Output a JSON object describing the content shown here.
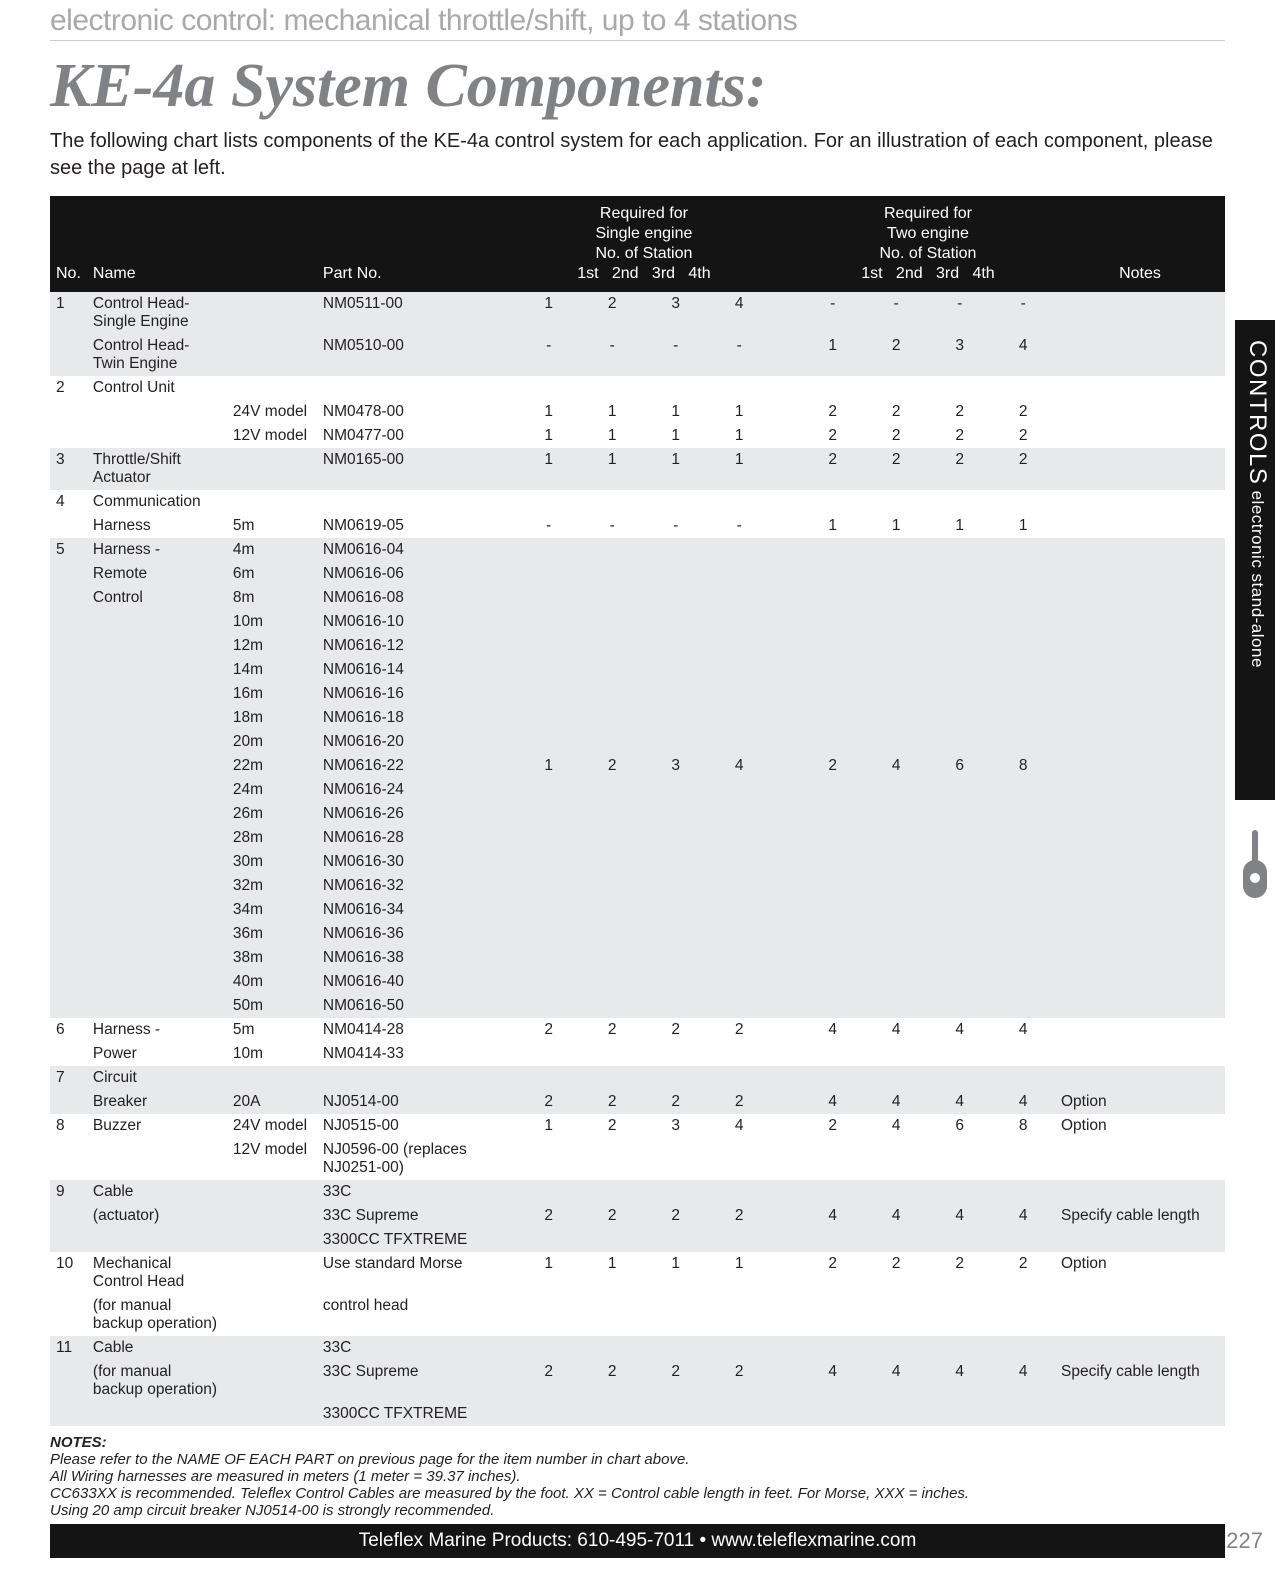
{
  "subtitle": "electronic control: mechanical throttle/shift, up to 4 stations",
  "title": "KE-4a System Components:",
  "intro": "The following chart lists components of the KE-4a control system for each application. For an illustration of each component, please see the page at left.",
  "header": {
    "no": "No.",
    "name": "Name",
    "part": "Part No.",
    "req_single": "Required for\nSingle engine\nNo. of Station",
    "req_twin": "Required for\nTwo engine\nNo. of Station",
    "stations": [
      "1st",
      "2nd",
      "3rd",
      "4th"
    ],
    "notes": "Notes"
  },
  "rows": [
    {
      "no": "1",
      "name": "Control Head-Single Engine",
      "part": "NM0511-00",
      "s": [
        "1",
        "2",
        "3",
        "4"
      ],
      "t": [
        "-",
        "-",
        "-",
        "-"
      ],
      "note": "",
      "band": true
    },
    {
      "no": "",
      "name": "Control Head-Twin Engine",
      "part": "NM0510-00",
      "s": [
        "-",
        "-",
        "-",
        "-"
      ],
      "t": [
        "1",
        "2",
        "3",
        "4"
      ],
      "note": "",
      "band": true
    },
    {
      "no": "2",
      "name": "Control Unit",
      "part": "",
      "s": [
        "",
        "",
        "",
        ""
      ],
      "t": [
        "",
        "",
        "",
        ""
      ],
      "note": ""
    },
    {
      "no": "",
      "name": "",
      "indent": "24V model",
      "part": "NM0478-00",
      "s": [
        "1",
        "1",
        "1",
        "1"
      ],
      "t": [
        "2",
        "2",
        "2",
        "2"
      ],
      "note": ""
    },
    {
      "no": "",
      "name": "",
      "indent": "12V model",
      "part": "NM0477-00",
      "s": [
        "1",
        "1",
        "1",
        "1"
      ],
      "t": [
        "2",
        "2",
        "2",
        "2"
      ],
      "note": ""
    },
    {
      "no": "3",
      "name": "Throttle/Shift Actuator",
      "part": "NM0165-00",
      "s": [
        "1",
        "1",
        "1",
        "1"
      ],
      "t": [
        "2",
        "2",
        "2",
        "2"
      ],
      "note": "",
      "band": true
    },
    {
      "no": "4",
      "name": "Communication",
      "part": "",
      "s": [
        "",
        "",
        "",
        ""
      ],
      "t": [
        "",
        "",
        "",
        ""
      ],
      "note": ""
    },
    {
      "no": "",
      "name": "Harness",
      "indent": "5m",
      "part": "NM0619-05",
      "s": [
        "-",
        "-",
        "-",
        "-"
      ],
      "t": [
        "1",
        "1",
        "1",
        "1"
      ],
      "note": ""
    },
    {
      "no": "5",
      "name": "Harness -",
      "indent": "4m",
      "part": "NM0616-04",
      "s": [
        "",
        "",
        "",
        ""
      ],
      "t": [
        "",
        "",
        "",
        ""
      ],
      "note": "",
      "band": true
    },
    {
      "no": "",
      "name": "Remote",
      "indent": "6m",
      "part": "NM0616-06",
      "s": [
        "",
        "",
        "",
        ""
      ],
      "t": [
        "",
        "",
        "",
        ""
      ],
      "note": "",
      "band": true
    },
    {
      "no": "",
      "name": "Control",
      "indent": "8m",
      "part": "NM0616-08",
      "s": [
        "",
        "",
        "",
        ""
      ],
      "t": [
        "",
        "",
        "",
        ""
      ],
      "note": "",
      "band": true
    },
    {
      "no": "",
      "name": "",
      "indent": "10m",
      "part": "NM0616-10",
      "s": [
        "",
        "",
        "",
        ""
      ],
      "t": [
        "",
        "",
        "",
        ""
      ],
      "note": "",
      "band": true
    },
    {
      "no": "",
      "name": "",
      "indent": "12m",
      "part": "NM0616-12",
      "s": [
        "",
        "",
        "",
        ""
      ],
      "t": [
        "",
        "",
        "",
        ""
      ],
      "note": "",
      "band": true
    },
    {
      "no": "",
      "name": "",
      "indent": "14m",
      "part": "NM0616-14",
      "s": [
        "",
        "",
        "",
        ""
      ],
      "t": [
        "",
        "",
        "",
        ""
      ],
      "note": "",
      "band": true
    },
    {
      "no": "",
      "name": "",
      "indent": "16m",
      "part": "NM0616-16",
      "s": [
        "",
        "",
        "",
        ""
      ],
      "t": [
        "",
        "",
        "",
        ""
      ],
      "note": "",
      "band": true
    },
    {
      "no": "",
      "name": "",
      "indent": "18m",
      "part": "NM0616-18",
      "s": [
        "",
        "",
        "",
        ""
      ],
      "t": [
        "",
        "",
        "",
        ""
      ],
      "note": "",
      "band": true
    },
    {
      "no": "",
      "name": "",
      "indent": "20m",
      "part": "NM0616-20",
      "s": [
        "",
        "",
        "",
        ""
      ],
      "t": [
        "",
        "",
        "",
        ""
      ],
      "note": "",
      "band": true
    },
    {
      "no": "",
      "name": "",
      "indent": "22m",
      "part": "NM0616-22",
      "s": [
        "1",
        "2",
        "3",
        "4"
      ],
      "t": [
        "2",
        "4",
        "6",
        "8"
      ],
      "note": "",
      "band": true
    },
    {
      "no": "",
      "name": "",
      "indent": "24m",
      "part": "NM0616-24",
      "s": [
        "",
        "",
        "",
        ""
      ],
      "t": [
        "",
        "",
        "",
        ""
      ],
      "note": "",
      "band": true
    },
    {
      "no": "",
      "name": "",
      "indent": "26m",
      "part": "NM0616-26",
      "s": [
        "",
        "",
        "",
        ""
      ],
      "t": [
        "",
        "",
        "",
        ""
      ],
      "note": "",
      "band": true
    },
    {
      "no": "",
      "name": "",
      "indent": "28m",
      "part": "NM0616-28",
      "s": [
        "",
        "",
        "",
        ""
      ],
      "t": [
        "",
        "",
        "",
        ""
      ],
      "note": "",
      "band": true
    },
    {
      "no": "",
      "name": "",
      "indent": "30m",
      "part": "NM0616-30",
      "s": [
        "",
        "",
        "",
        ""
      ],
      "t": [
        "",
        "",
        "",
        ""
      ],
      "note": "",
      "band": true
    },
    {
      "no": "",
      "name": "",
      "indent": "32m",
      "part": "NM0616-32",
      "s": [
        "",
        "",
        "",
        ""
      ],
      "t": [
        "",
        "",
        "",
        ""
      ],
      "note": "",
      "band": true
    },
    {
      "no": "",
      "name": "",
      "indent": "34m",
      "part": "NM0616-34",
      "s": [
        "",
        "",
        "",
        ""
      ],
      "t": [
        "",
        "",
        "",
        ""
      ],
      "note": "",
      "band": true
    },
    {
      "no": "",
      "name": "",
      "indent": "36m",
      "part": "NM0616-36",
      "s": [
        "",
        "",
        "",
        ""
      ],
      "t": [
        "",
        "",
        "",
        ""
      ],
      "note": "",
      "band": true
    },
    {
      "no": "",
      "name": "",
      "indent": "38m",
      "part": "NM0616-38",
      "s": [
        "",
        "",
        "",
        ""
      ],
      "t": [
        "",
        "",
        "",
        ""
      ],
      "note": "",
      "band": true
    },
    {
      "no": "",
      "name": "",
      "indent": "40m",
      "part": "NM0616-40",
      "s": [
        "",
        "",
        "",
        ""
      ],
      "t": [
        "",
        "",
        "",
        ""
      ],
      "note": "",
      "band": true
    },
    {
      "no": "",
      "name": "",
      "indent": "50m",
      "part": "NM0616-50",
      "s": [
        "",
        "",
        "",
        ""
      ],
      "t": [
        "",
        "",
        "",
        ""
      ],
      "note": "",
      "band": true
    },
    {
      "no": "6",
      "name": "Harness -",
      "indent": "5m",
      "part": "NM0414-28",
      "s": [
        "2",
        "2",
        "2",
        "2"
      ],
      "t": [
        "4",
        "4",
        "4",
        "4"
      ],
      "note": ""
    },
    {
      "no": "",
      "name": "Power",
      "indent": "10m",
      "part": "NM0414-33",
      "s": [
        "",
        "",
        "",
        ""
      ],
      "t": [
        "",
        "",
        "",
        ""
      ],
      "note": ""
    },
    {
      "no": "7",
      "name": "Circuit",
      "part": "",
      "s": [
        "",
        "",
        "",
        ""
      ],
      "t": [
        "",
        "",
        "",
        ""
      ],
      "note": "",
      "band": true
    },
    {
      "no": "",
      "name": "Breaker",
      "indent": "20A",
      "part": "NJ0514-00",
      "s": [
        "2",
        "2",
        "2",
        "2"
      ],
      "t": [
        "4",
        "4",
        "4",
        "4"
      ],
      "note": "Option",
      "band": true
    },
    {
      "no": "8",
      "name": "Buzzer",
      "indent": "24V model",
      "part": "NJ0515-00",
      "s": [
        "1",
        "2",
        "3",
        "4"
      ],
      "t": [
        "2",
        "4",
        "6",
        "8"
      ],
      "note": "Option"
    },
    {
      "no": "",
      "name": "",
      "indent": "12V model",
      "part": "NJ0596-00 (replaces NJ0251-00)",
      "s": [
        "",
        "",
        "",
        ""
      ],
      "t": [
        "",
        "",
        "",
        ""
      ],
      "note": ""
    },
    {
      "no": "9",
      "name": "Cable",
      "part": "33C",
      "s": [
        "",
        "",
        "",
        ""
      ],
      "t": [
        "",
        "",
        "",
        ""
      ],
      "note": "",
      "band": true
    },
    {
      "no": "",
      "name": "(actuator)",
      "part": "33C Supreme",
      "s": [
        "2",
        "2",
        "2",
        "2"
      ],
      "t": [
        "4",
        "4",
        "4",
        "4"
      ],
      "note": "Specify cable length",
      "band": true
    },
    {
      "no": "",
      "name": "",
      "part": "3300CC TFXTREME",
      "s": [
        "",
        "",
        "",
        ""
      ],
      "t": [
        "",
        "",
        "",
        ""
      ],
      "note": "",
      "band": true
    },
    {
      "no": "10",
      "name": "Mechanical Control Head",
      "part": "Use standard Morse",
      "s": [
        "1",
        "1",
        "1",
        "1"
      ],
      "t": [
        "2",
        "2",
        "2",
        "2"
      ],
      "note": "Option"
    },
    {
      "no": "",
      "name": "(for manual backup operation)",
      "part": "control head",
      "s": [
        "",
        "",
        "",
        ""
      ],
      "t": [
        "",
        "",
        "",
        ""
      ],
      "note": ""
    },
    {
      "no": "11",
      "name": "Cable",
      "part": "33C",
      "s": [
        "",
        "",
        "",
        ""
      ],
      "t": [
        "",
        "",
        "",
        ""
      ],
      "note": "",
      "band": true
    },
    {
      "no": "",
      "name": "(for manual backup operation)",
      "part": "33C Supreme",
      "s": [
        "2",
        "2",
        "2",
        "2"
      ],
      "t": [
        "4",
        "4",
        "4",
        "4"
      ],
      "note": "Specify cable length",
      "band": true
    },
    {
      "no": "",
      "name": "",
      "part": "3300CC TFXTREME",
      "s": [
        "",
        "",
        "",
        ""
      ],
      "t": [
        "",
        "",
        "",
        ""
      ],
      "note": "",
      "band": true
    }
  ],
  "notes_title": "NOTES:",
  "notes": [
    "Please refer to the NAME OF EACH PART on previous page for the item number in chart above.",
    "All Wiring harnesses are measured in meters (1 meter = 39.37 inches).",
    "CC633XX is recommended. Teleflex Control Cables are measured by the foot. XX = Control cable length in feet. For Morse, XXX = inches.",
    "Using 20 amp circuit breaker NJ0514-00 is strongly recommended."
  ],
  "footer": "Teleflex Marine Products: 610-495-7011  •  www.teleflexmarine.com",
  "page_num": "227",
  "side_tab_big": "CONTROLS",
  "side_tab_small": " electronic stand-alone"
}
